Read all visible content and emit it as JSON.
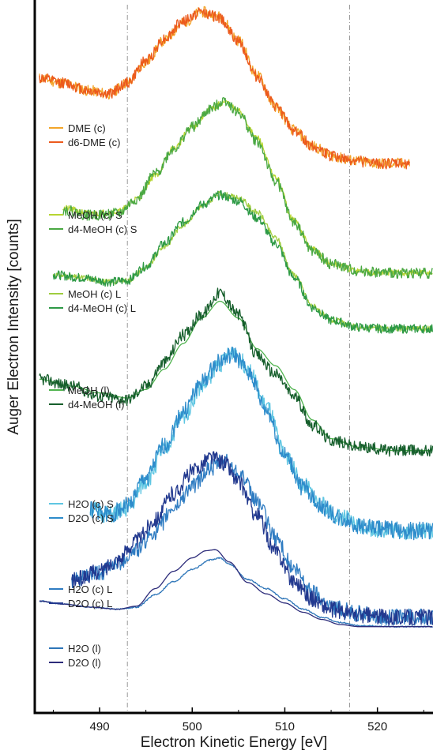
{
  "chart_data": {
    "type": "line",
    "xlabel": "Electron Kinetic Energy [eV]",
    "ylabel": "Auger Electron Intensity [counts]",
    "xlim": [
      483,
      526
    ],
    "xticks": [
      490,
      500,
      510,
      520
    ],
    "vlines": [
      493,
      517
    ],
    "y_scale": "arbitrary, vertically offset stacked spectra",
    "groups": [
      {
        "legend": [
          {
            "name": "DME (c)",
            "color": "#f3a52a"
          },
          {
            "name": "d6-DME (c)",
            "color": "#ec5a1d"
          }
        ],
        "series": [
          {
            "name": "DME (c)",
            "color": "#f3a52a",
            "noise": 0.035,
            "seed": 11,
            "x": [
              483.5,
              486,
              489,
              491,
              493,
              495,
              497,
              499,
              501,
              503,
              505,
              507,
              509,
              511,
              513,
              515,
              517,
              520,
              523.5
            ],
            "y": [
              0.58,
              0.55,
              0.5,
              0.48,
              0.55,
              0.68,
              0.82,
              0.93,
              1.0,
              0.97,
              0.82,
              0.6,
              0.4,
              0.25,
              0.15,
              0.09,
              0.06,
              0.04,
              0.04
            ]
          },
          {
            "name": "d6-DME (c)",
            "color": "#ec5a1d",
            "noise": 0.035,
            "seed": 12,
            "x": [
              483.5,
              486,
              489,
              491,
              493,
              495,
              497,
              499,
              501,
              503,
              505,
              507,
              509,
              511,
              513,
              515,
              517,
              520,
              523.5
            ],
            "y": [
              0.58,
              0.55,
              0.5,
              0.48,
              0.55,
              0.69,
              0.83,
              0.94,
              1.0,
              0.96,
              0.81,
              0.59,
              0.4,
              0.25,
              0.15,
              0.09,
              0.06,
              0.04,
              0.04
            ]
          }
        ]
      },
      {
        "legend": [
          {
            "name": "MeOH (c) S",
            "color": "#b6d531"
          },
          {
            "name": "d4-MeOH (c) S",
            "color": "#4aa843"
          }
        ],
        "series": [
          {
            "name": "MeOH (c) S",
            "color": "#b6d531",
            "noise": 0.018,
            "seed": 21,
            "x": [
              486,
              489,
              492,
              494,
              496,
              498,
              500,
              502,
              503.5,
              505,
              507,
              509,
              511,
              513,
              515,
              518,
              521,
              526
            ],
            "y": [
              0.37,
              0.34,
              0.35,
              0.42,
              0.55,
              0.7,
              0.82,
              0.92,
              0.96,
              0.91,
              0.76,
              0.54,
              0.3,
              0.14,
              0.06,
              0.02,
              0.01,
              0.01
            ]
          },
          {
            "name": "d4-MeOH (c) S",
            "color": "#4aa843",
            "noise": 0.03,
            "seed": 22,
            "x": [
              486,
              489,
              492,
              494,
              496,
              498,
              500,
              502,
              503.5,
              505,
              507,
              509,
              511,
              513,
              515,
              518,
              521,
              526
            ],
            "y": [
              0.36,
              0.33,
              0.34,
              0.42,
              0.56,
              0.7,
              0.82,
              0.92,
              0.97,
              0.9,
              0.74,
              0.52,
              0.29,
              0.13,
              0.06,
              0.02,
              0.01,
              0.01
            ]
          }
        ]
      },
      {
        "legend": [
          {
            "name": "MeOH (c) L",
            "color": "#9fcd3f"
          },
          {
            "name": "d4-MeOH (c) L",
            "color": "#2e9a46"
          }
        ],
        "series": [
          {
            "name": "MeOH (c) L",
            "color": "#9fcd3f",
            "noise": 0.02,
            "seed": 31,
            "x": [
              485,
              488,
              491,
              493,
              495,
              497,
              499,
              501,
              503,
              505,
              507,
              509,
              511,
              513,
              515,
              518,
              521,
              526
            ],
            "y": [
              0.4,
              0.38,
              0.35,
              0.36,
              0.45,
              0.6,
              0.75,
              0.88,
              0.97,
              0.94,
              0.84,
              0.66,
              0.4,
              0.18,
              0.08,
              0.03,
              0.02,
              0.02
            ]
          },
          {
            "name": "d4-MeOH (c) L",
            "color": "#2e9a46",
            "noise": 0.032,
            "seed": 32,
            "x": [
              485,
              488,
              491,
              493,
              495,
              497,
              499,
              501,
              503,
              505,
              507,
              509,
              511,
              513,
              515,
              518,
              521,
              526
            ],
            "y": [
              0.4,
              0.38,
              0.35,
              0.36,
              0.46,
              0.62,
              0.77,
              0.89,
              0.96,
              0.92,
              0.8,
              0.62,
              0.38,
              0.17,
              0.08,
              0.03,
              0.02,
              0.02
            ]
          }
        ]
      },
      {
        "legend": [
          {
            "name": "MeOH (l)",
            "color": "#4fb34e"
          },
          {
            "name": "d4-MeOH (l)",
            "color": "#165f2c"
          }
        ],
        "series": [
          {
            "name": "MeOH (l)",
            "color": "#4fb34e",
            "noise": 0.0,
            "seed": 41,
            "x": [
              483.5,
              487,
              490,
              493,
              495,
              497,
              499,
              501,
              503,
              505,
              507,
              509,
              511,
              513,
              515,
              518,
              522,
              526
            ],
            "y": [
              0.44,
              0.4,
              0.36,
              0.33,
              0.38,
              0.5,
              0.65,
              0.8,
              0.9,
              0.8,
              0.62,
              0.52,
              0.38,
              0.2,
              0.09,
              0.04,
              0.02,
              0.02
            ]
          },
          {
            "name": "d4-MeOH (l)",
            "color": "#165f2c",
            "noise": 0.035,
            "seed": 42,
            "x": [
              483.5,
              487,
              490,
              493,
              495,
              497,
              499,
              501,
              503,
              505,
              507,
              509,
              511,
              513,
              515,
              518,
              522,
              526
            ],
            "y": [
              0.44,
              0.4,
              0.34,
              0.32,
              0.4,
              0.54,
              0.7,
              0.82,
              0.95,
              0.82,
              0.58,
              0.47,
              0.34,
              0.17,
              0.08,
              0.04,
              0.02,
              0.02
            ]
          }
        ]
      },
      {
        "legend": [
          {
            "name": "H2O (c) S",
            "color": "#5fc6e2"
          },
          {
            "name": "D2O (c) S",
            "color": "#2e8ccb"
          }
        ],
        "series": [
          {
            "name": "H2O (c) S",
            "color": "#5fc6e2",
            "noise": 0.045,
            "seed": 51,
            "x": [
              489,
              491,
              493,
              495,
              497,
              499,
              501,
              503,
              504.5,
              506,
              508,
              510,
              512,
              514,
              516,
              518,
              520,
              523,
              526
            ],
            "y": [
              0.18,
              0.15,
              0.18,
              0.32,
              0.48,
              0.65,
              0.8,
              0.92,
              0.98,
              0.9,
              0.7,
              0.46,
              0.3,
              0.2,
              0.14,
              0.1,
              0.08,
              0.07,
              0.07
            ]
          },
          {
            "name": "D2O (c) S",
            "color": "#2e8ccb",
            "noise": 0.045,
            "seed": 52,
            "x": [
              489,
              491,
              493,
              495,
              497,
              499,
              501,
              503,
              504.5,
              506,
              508,
              510,
              512,
              514,
              516,
              518,
              520,
              523,
              526
            ],
            "y": [
              0.18,
              0.15,
              0.2,
              0.34,
              0.5,
              0.67,
              0.82,
              0.93,
              0.96,
              0.88,
              0.68,
              0.45,
              0.29,
              0.19,
              0.13,
              0.1,
              0.08,
              0.07,
              0.07
            ]
          }
        ]
      },
      {
        "legend": [
          {
            "name": "H2O (c) L",
            "color": "#2f7cc2"
          },
          {
            "name": "D2O (c) L",
            "color": "#22398f"
          }
        ],
        "series": [
          {
            "name": "H2O (c) L",
            "color": "#2f7cc2",
            "noise": 0.045,
            "seed": 61,
            "x": [
              487,
              490,
              492,
              494,
              496,
              498,
              500,
              502,
              503.5,
              505,
              507,
              509,
              511,
              513,
              515,
              518,
              521,
              526
            ],
            "y": [
              0.28,
              0.32,
              0.38,
              0.45,
              0.55,
              0.68,
              0.8,
              0.9,
              0.94,
              0.88,
              0.72,
              0.52,
              0.34,
              0.22,
              0.14,
              0.1,
              0.08,
              0.08
            ]
          },
          {
            "name": "D2O (c) L",
            "color": "#22398f",
            "noise": 0.045,
            "seed": 62,
            "x": [
              487,
              490,
              492,
              494,
              496,
              498,
              500,
              502,
              503.5,
              505,
              507,
              509,
              511,
              513,
              515,
              518,
              521,
              526
            ],
            "y": [
              0.28,
              0.33,
              0.4,
              0.5,
              0.62,
              0.76,
              0.88,
              0.96,
              0.93,
              0.82,
              0.64,
              0.44,
              0.28,
              0.18,
              0.12,
              0.09,
              0.08,
              0.08
            ]
          }
        ]
      },
      {
        "legend": [
          {
            "name": "H2O (l)",
            "color": "#2d75b8"
          },
          {
            "name": "D2O (l)",
            "color": "#2d2c7a"
          }
        ],
        "series": [
          {
            "name": "H2O (l)",
            "color": "#2d75b8",
            "noise": 0.006,
            "seed": 71,
            "x": [
              483.5,
              486,
              489,
              492,
              494,
              496,
              498,
              500,
              502,
              503,
              504,
              506,
              508,
              510,
              512,
              514,
              516,
              518,
              522,
              526
            ],
            "y": [
              0.26,
              0.23,
              0.2,
              0.18,
              0.2,
              0.32,
              0.45,
              0.57,
              0.66,
              0.68,
              0.62,
              0.47,
              0.38,
              0.28,
              0.18,
              0.1,
              0.05,
              0.02,
              0.01,
              0.01
            ]
          },
          {
            "name": "D2O (l)",
            "color": "#2d2c7a",
            "noise": 0.0,
            "seed": 72,
            "x": [
              483.5,
              486,
              489,
              492,
              494,
              496,
              498,
              500,
              501.5,
              502.5,
              504,
              506,
              508,
              510,
              512,
              514,
              516,
              518,
              522,
              526
            ],
            "y": [
              0.26,
              0.23,
              0.2,
              0.18,
              0.21,
              0.38,
              0.55,
              0.68,
              0.75,
              0.76,
              0.64,
              0.44,
              0.33,
              0.24,
              0.15,
              0.08,
              0.03,
              0.01,
              0.01,
              0.01
            ]
          }
        ]
      }
    ]
  }
}
